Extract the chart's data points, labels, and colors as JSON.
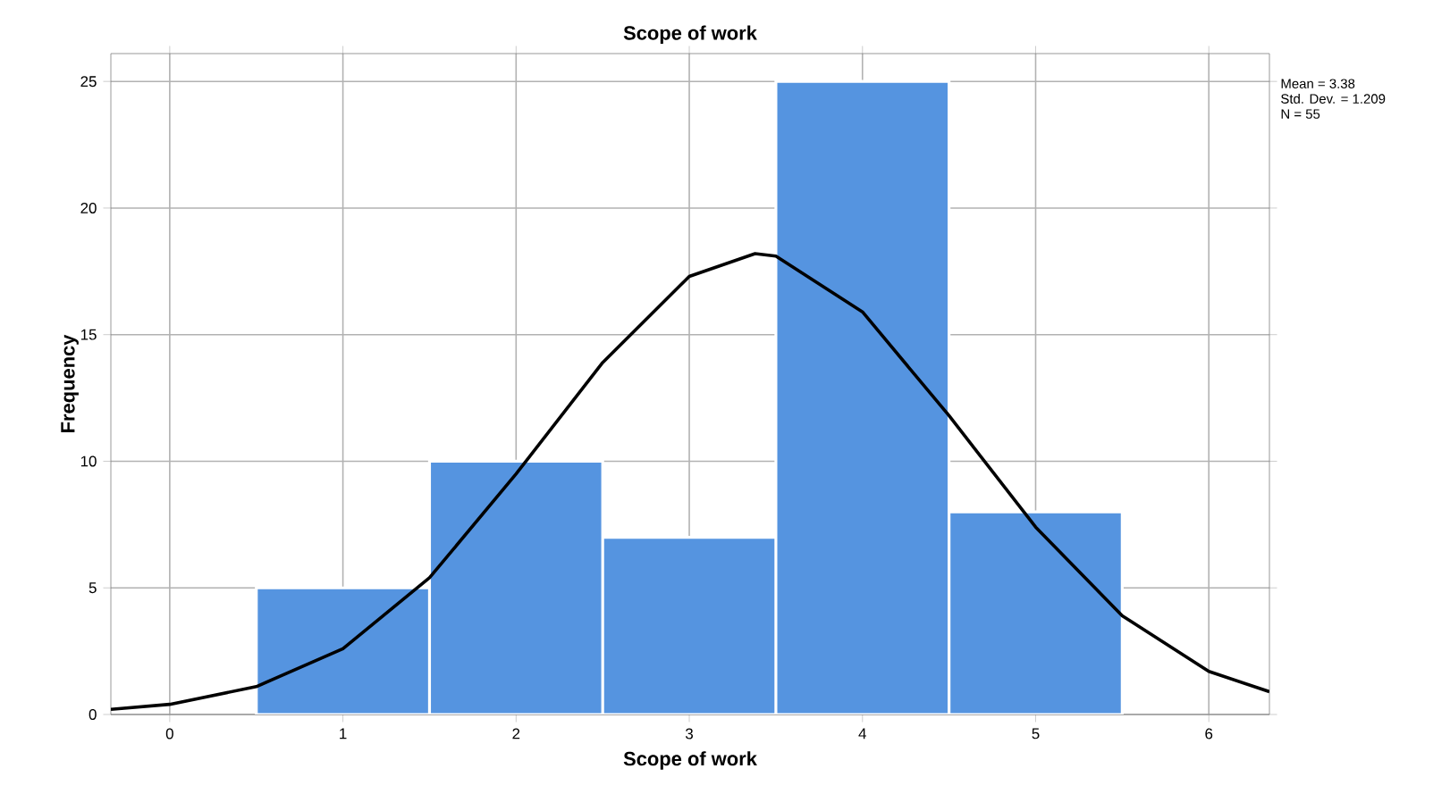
{
  "chart_data": {
    "type": "histogram",
    "title": "Scope of work",
    "xlabel": "Scope of work",
    "ylabel": "Frequency",
    "bins": [
      0.5,
      1.5,
      2.5,
      3.5,
      4.5,
      5.5
    ],
    "values": [
      5,
      10,
      7,
      25,
      8
    ],
    "color": "#5594e0",
    "series": [
      {
        "type": "line",
        "color": "#000000",
        "x": [
          -0.34,
          0,
          0.5,
          1,
          1.5,
          2,
          2.5,
          3,
          3.38,
          3.5,
          4,
          4.5,
          5,
          5.5,
          6,
          6.35
        ],
        "values": [
          0.2,
          0.4,
          1.1,
          2.6,
          5.4,
          9.5,
          13.9,
          17.3,
          18.2,
          18.1,
          15.9,
          11.8,
          7.4,
          3.9,
          1.7,
          0.9
        ]
      }
    ],
    "xlim": [
      -0.34,
      6.35
    ],
    "ylim": [
      0,
      26.1
    ],
    "xticks": [
      0,
      1,
      2,
      3,
      4,
      5,
      6
    ],
    "yticks": [
      0,
      5,
      10,
      15,
      20,
      25
    ],
    "grid": true,
    "annotations": [
      "Mean = 3.38",
      "Std. Dev. = 1.209",
      "N = 55"
    ]
  }
}
